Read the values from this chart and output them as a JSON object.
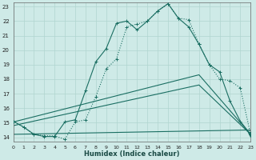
{
  "xlabel": "Humidex (Indice chaleur)",
  "xlim": [
    0,
    23
  ],
  "ylim": [
    13.7,
    23.3
  ],
  "xticks": [
    0,
    1,
    2,
    3,
    4,
    5,
    6,
    7,
    8,
    9,
    10,
    11,
    12,
    13,
    14,
    15,
    16,
    17,
    18,
    19,
    20,
    21,
    22,
    23
  ],
  "yticks": [
    14,
    15,
    16,
    17,
    18,
    19,
    20,
    21,
    22,
    23
  ],
  "bg_color": "#ceeae7",
  "line_color": "#1a6e62",
  "grid_color": "#b0d5d0",
  "line1_x": [
    0,
    1,
    2,
    3,
    4,
    5,
    6,
    7,
    8,
    9,
    10,
    11,
    12,
    13,
    14,
    15,
    16,
    17,
    18,
    19,
    20,
    21,
    22,
    23
  ],
  "line1_y": [
    15.1,
    14.7,
    14.2,
    14.1,
    14.1,
    13.85,
    15.05,
    15.2,
    16.8,
    18.7,
    19.4,
    21.6,
    21.8,
    22.0,
    22.7,
    23.2,
    22.2,
    22.1,
    20.4,
    19.0,
    18.0,
    17.9,
    17.4,
    14.2
  ],
  "line1_style": "dotted",
  "line1_marker": "+",
  "line2_x": [
    0,
    1,
    2,
    3,
    4,
    5,
    6,
    7,
    8,
    9,
    10,
    11,
    12,
    13,
    14,
    15,
    16,
    17,
    18,
    19,
    20,
    21,
    22,
    23
  ],
  "line2_y": [
    15.1,
    14.7,
    14.2,
    14.05,
    14.05,
    15.05,
    15.2,
    17.2,
    19.2,
    20.1,
    21.85,
    22.0,
    21.4,
    22.0,
    22.7,
    23.2,
    22.2,
    21.6,
    20.4,
    19.0,
    18.5,
    16.5,
    15.1,
    14.2
  ],
  "line2_style": "solid",
  "line2_marker": "+",
  "line3_x": [
    0,
    18,
    23
  ],
  "line3_y": [
    15.05,
    18.3,
    14.2
  ],
  "line3_style": "solid",
  "line4_x": [
    0,
    18,
    23
  ],
  "line4_y": [
    14.8,
    17.6,
    14.2
  ],
  "line4_style": "solid",
  "line5_x": [
    0,
    23
  ],
  "line5_y": [
    14.2,
    14.5
  ],
  "line5_style": "solid",
  "triangle_x": 23,
  "triangle_y": 14.2
}
